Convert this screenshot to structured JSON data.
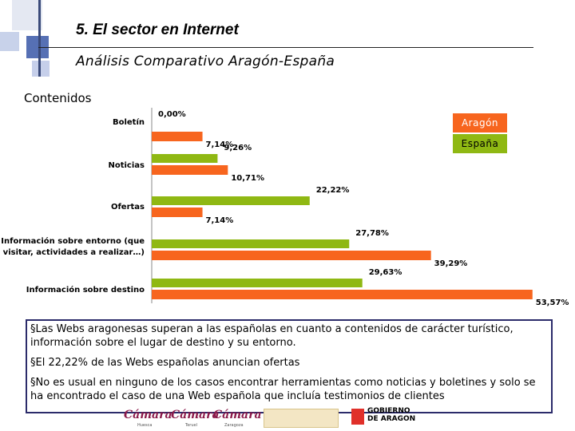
{
  "header": {
    "title": "5. El sector en Internet",
    "subtitle": "Análisis Comparativo Aragón-España"
  },
  "section_label": "Contenidos",
  "colors": {
    "aragon": "#f7651e",
    "espana": "#8fb813"
  },
  "chart_data": {
    "type": "bar",
    "orientation": "horizontal",
    "categories": [
      "Boletín",
      "Noticias",
      "Ofertas",
      "Información sobre entorno (que visitar, actividades a realizar…)",
      "Información sobre destino"
    ],
    "series": [
      {
        "name": "España",
        "values": [
          0.0,
          9.26,
          22.22,
          27.78,
          29.63
        ],
        "labels": [
          "0,00%",
          "9,26%",
          "22,22%",
          "27,78%",
          "29,63%"
        ],
        "color": "#8fb813"
      },
      {
        "name": "Aragón",
        "values": [
          7.14,
          10.71,
          7.14,
          39.29,
          53.57
        ],
        "labels": [
          "7,14%",
          "10,71%",
          "7,14%",
          "39,29%",
          "53,57%"
        ],
        "color": "#f7651e"
      }
    ],
    "legend": [
      "Aragón",
      "España"
    ],
    "legend_position": "top-right",
    "grid": false
  },
  "bullets": [
    "§Las Webs aragonesas superan a las españolas en cuanto a contenidos de carácter turístico, información sobre el lugar de destino y su entorno.",
    "§El 22,22% de las Webs españolas anuncian ofertas",
    "§No es usual en ninguno de los casos encontrar herramientas como noticias y boletines y solo se ha encontrado el caso de una Web española que incluía testimonios de clientes"
  ],
  "footer_logos": {
    "camara_1": "Cámara",
    "camara_1_city": "Huesca",
    "camara_2": "Cámara",
    "camara_2_city": "Teruel",
    "camara_3": "Cámara",
    "camara_3_city": "Zaragoza",
    "gobierno_line1": "GOBIERNO",
    "gobierno_line2": "DE ARAGON"
  }
}
